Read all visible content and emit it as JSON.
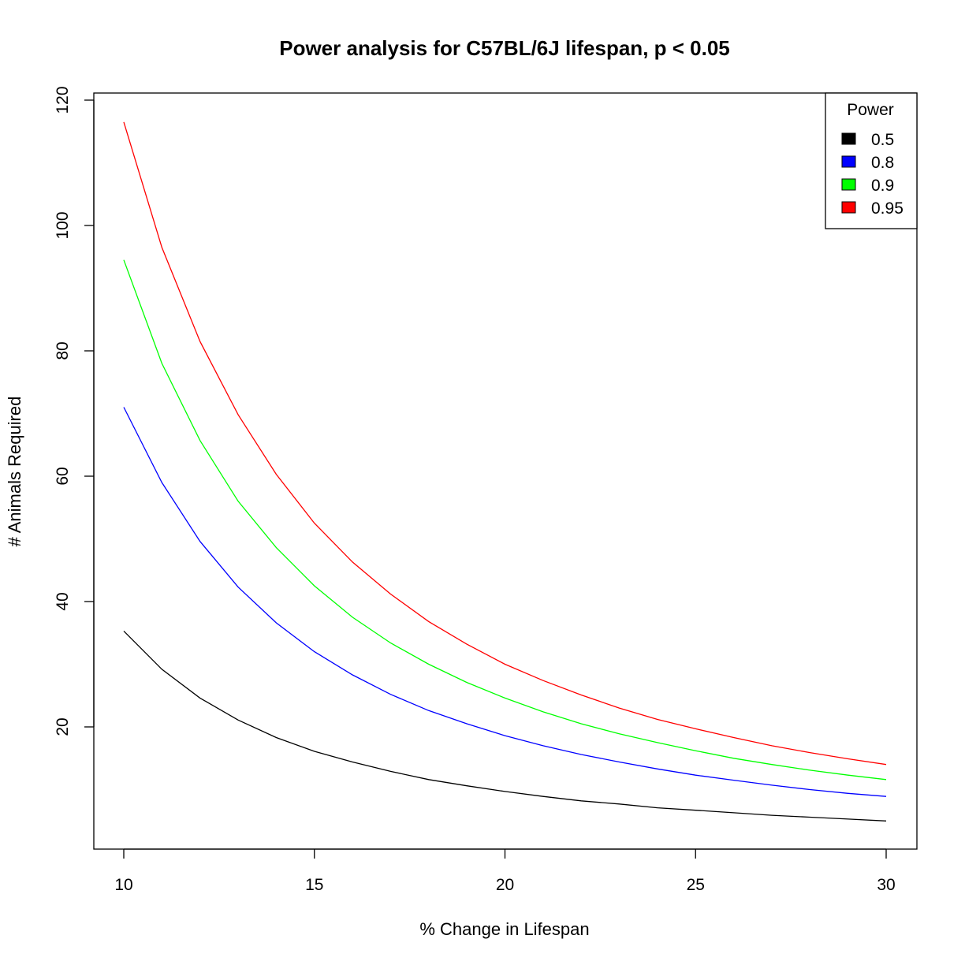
{
  "chart_data": {
    "type": "line",
    "title": "Power analysis for C57BL/6J lifespan, p < 0.05",
    "xlabel": "% Change in Lifespan",
    "ylabel": "# Animals Required",
    "xlim": [
      10,
      30
    ],
    "ylim": [
      5,
      120
    ],
    "xticks": [
      10,
      15,
      20,
      25,
      30
    ],
    "yticks": [
      20,
      40,
      60,
      80,
      100,
      120
    ],
    "grid": false,
    "legend_title": "Power",
    "legend_position": "top-right",
    "x": [
      10,
      11,
      12,
      13,
      14,
      15,
      16,
      17,
      18,
      19,
      20,
      21,
      22,
      23,
      24,
      25,
      26,
      27,
      28,
      29,
      30
    ],
    "series": [
      {
        "name": "0.5",
        "color": "#000000",
        "values": [
          35.3,
          29.2,
          24.6,
          21.1,
          18.3,
          16.1,
          14.4,
          12.9,
          11.6,
          10.6,
          9.7,
          8.9,
          8.2,
          7.7,
          7.1,
          6.7,
          6.3,
          5.9,
          5.6,
          5.3,
          5.0
        ]
      },
      {
        "name": "0.8",
        "color": "#0000ff",
        "values": [
          71.0,
          59.0,
          49.6,
          42.3,
          36.6,
          32.0,
          28.3,
          25.2,
          22.6,
          20.5,
          18.6,
          17.0,
          15.6,
          14.4,
          13.3,
          12.3,
          11.5,
          10.7,
          10.0,
          9.4,
          8.9
        ]
      },
      {
        "name": "0.9",
        "color": "#00ff00",
        "values": [
          94.5,
          78.0,
          65.7,
          56.0,
          48.6,
          42.5,
          37.5,
          33.4,
          30.0,
          27.1,
          24.6,
          22.4,
          20.5,
          18.9,
          17.5,
          16.2,
          15.0,
          14.0,
          13.1,
          12.3,
          11.6
        ]
      },
      {
        "name": "0.95",
        "color": "#ff0000",
        "values": [
          116.5,
          96.5,
          81.5,
          69.8,
          60.3,
          52.5,
          46.3,
          41.2,
          36.8,
          33.2,
          30.0,
          27.4,
          25.1,
          23.0,
          21.2,
          19.7,
          18.3,
          17.0,
          15.9,
          14.9,
          14.0
        ]
      }
    ]
  }
}
